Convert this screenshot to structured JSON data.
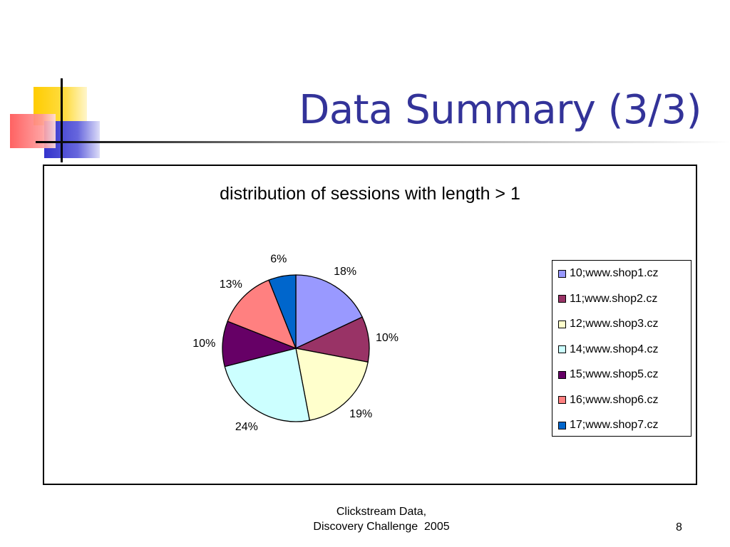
{
  "slide": {
    "title": "Data Summary (3/3)"
  },
  "footer": {
    "line1": "Clickstream Data,",
    "line2": "Discovery Challenge  2005",
    "page_number": "8"
  },
  "colors": {
    "title": "#333399",
    "deco_yellow": "#FFCC00",
    "deco_blue": "#3333CC",
    "deco_red": "#FF3333"
  },
  "chart_data": {
    "type": "pie",
    "title": "distribution of sessions with length > 1",
    "legend_position": "right",
    "slices": [
      {
        "label": "10;www.shop1.cz",
        "value": 18,
        "display": "18%",
        "color": "#9999FF"
      },
      {
        "label": "11;www.shop2.cz",
        "value": 10,
        "display": "10%",
        "color": "#993366"
      },
      {
        "label": "12;www.shop3.cz",
        "value": 19,
        "display": "19%",
        "color": "#FFFFCC"
      },
      {
        "label": "14;www.shop4.cz",
        "value": 24,
        "display": "24%",
        "color": "#CCFFFF"
      },
      {
        "label": "15;www.shop5.cz",
        "value": 10,
        "display": "10%",
        "color": "#660066"
      },
      {
        "label": "16;www.shop6.cz",
        "value": 13,
        "display": "13%",
        "color": "#FF8080"
      },
      {
        "label": "17;www.shop7.cz",
        "value": 6,
        "display": "6%",
        "color": "#0066CC"
      }
    ]
  }
}
